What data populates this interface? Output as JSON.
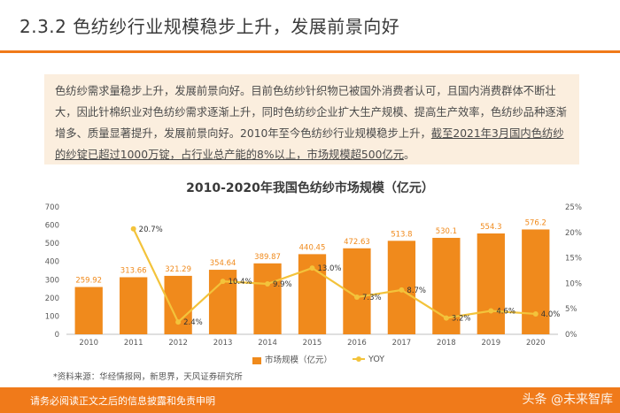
{
  "header": {
    "title": "2.3.2 色纺纱行业规模稳步上升，发展前景向好",
    "accent_color": "#f07a1a"
  },
  "summary": {
    "part1": "色纺纱需求量稳步上升，发展前景向好。目前色纺纱针织物已被国外消费者认可，且国内消费群体不断壮大，因此针棉织业对色纺纱需求逐渐上升，同时色纺纱企业扩大生产规模、提高生产效率，色纺纱品种逐渐增多、质量显著提升，发展前景向好。2010年至今色纺纱行业规模稳步上升，",
    "part2": "截至2021年3月国内色纺纱的纱锭已超过1000万锭，占行业总产能的8%以上，市场规模超500亿元",
    "part3": "。"
  },
  "chart_data": {
    "type": "bar",
    "title": "2010-2020年我国色纺纱市场规模（亿元）",
    "categories": [
      "2010",
      "2011",
      "2012",
      "2013",
      "2014",
      "2015",
      "2016",
      "2017",
      "2018",
      "2019",
      "2020"
    ],
    "series": [
      {
        "name": "市场规模（亿元）",
        "type": "bar",
        "axis": "left",
        "color": "#f08a1c",
        "values": [
          259.92,
          313.66,
          321.29,
          354.64,
          389.87,
          440.45,
          472.63,
          513.8,
          530.1,
          554.3,
          576.2
        ],
        "labels": [
          "259.92",
          "313.66",
          "321.29",
          "354.64",
          "389.87",
          "440.45",
          "472.63",
          "513.8",
          "530.1",
          "554.3",
          "576.2"
        ]
      },
      {
        "name": "YOY",
        "type": "line",
        "axis": "right",
        "color": "#f3c33b",
        "values": [
          null,
          20.7,
          2.4,
          10.4,
          9.9,
          13.0,
          7.3,
          8.7,
          3.2,
          4.6,
          4.0
        ],
        "labels": [
          "",
          "20.7%",
          "2.4%",
          "10.4%",
          "9.9%",
          "13.0%",
          "7.3%",
          "8.7%",
          "3.2%",
          "4.6%",
          "4.0%"
        ]
      }
    ],
    "y_left": {
      "min": 0,
      "max": 700,
      "ticks": [
        "0",
        "100",
        "200",
        "300",
        "400",
        "500",
        "600",
        "700"
      ]
    },
    "y_right": {
      "min": 0,
      "max": 25,
      "ticks": [
        "0%",
        "5%",
        "10%",
        "15%",
        "20%",
        "25%"
      ]
    },
    "legend_position": "bottom"
  },
  "legend": {
    "bar_label": "市场规模（亿元）",
    "line_label": "YOY"
  },
  "source": "*资料来源：华经情报网，新思界，天风证券研究所",
  "footer": {
    "disclaimer": "请务必阅读正文之后的信息披露和免责申明",
    "watermark": "头条 @未来智库"
  }
}
